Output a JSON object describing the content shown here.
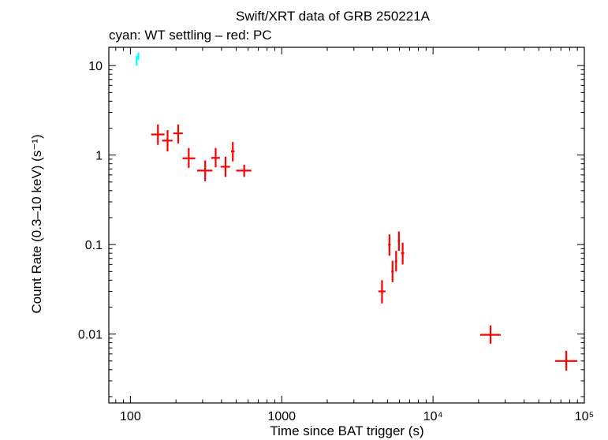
{
  "chart_data": {
    "type": "scatter",
    "title": "Swift/XRT data of GRB 250221A",
    "subtitle": "cyan: WT settling – red: PC",
    "xlabel": "Time since BAT trigger (s)",
    "ylabel": "Count Rate (0.3–10 keV) (s⁻¹)",
    "x_scale": "log",
    "y_scale": "log",
    "xlim": [
      72,
      100000
    ],
    "ylim": [
      0.0017,
      16
    ],
    "x_ticks": [
      {
        "value": 100,
        "label": "100"
      },
      {
        "value": 1000,
        "label": "1000"
      },
      {
        "value": 10000,
        "label": "10⁴"
      },
      {
        "value": 100000,
        "label": "10⁵"
      }
    ],
    "y_ticks": [
      {
        "value": 10,
        "label": "10"
      },
      {
        "value": 1,
        "label": "1"
      },
      {
        "value": 0.1,
        "label": "0.1"
      },
      {
        "value": 0.01,
        "label": "0.01"
      }
    ],
    "grid": false,
    "series": [
      {
        "color": "#00ffff",
        "points": [
          {
            "x": 110,
            "y": 11.5,
            "xlo": 109,
            "xhi": 111,
            "ylo": 10.0,
            "yhi": 12.8
          },
          {
            "x": 113,
            "y": 12.8,
            "xlo": 112,
            "xhi": 114,
            "ylo": 11.6,
            "yhi": 14.0
          }
        ]
      },
      {
        "color": "#ff0000",
        "points": [
          {
            "x": 152,
            "y": 1.7,
            "xlo": 137,
            "xhi": 168,
            "ylo": 1.3,
            "yhi": 2.2
          },
          {
            "x": 176,
            "y": 1.45,
            "xlo": 162,
            "xhi": 190,
            "ylo": 1.1,
            "yhi": 1.9
          },
          {
            "x": 207,
            "y": 1.75,
            "xlo": 192,
            "xhi": 222,
            "ylo": 1.35,
            "yhi": 2.2
          },
          {
            "x": 243,
            "y": 0.92,
            "xlo": 221,
            "xhi": 268,
            "ylo": 0.72,
            "yhi": 1.2
          },
          {
            "x": 312,
            "y": 0.67,
            "xlo": 276,
            "xhi": 348,
            "ylo": 0.51,
            "yhi": 0.87
          },
          {
            "x": 366,
            "y": 0.93,
            "xlo": 342,
            "xhi": 390,
            "ylo": 0.73,
            "yhi": 1.2
          },
          {
            "x": 425,
            "y": 0.74,
            "xlo": 394,
            "xhi": 455,
            "ylo": 0.57,
            "yhi": 0.96
          },
          {
            "x": 475,
            "y": 1.1,
            "xlo": 462,
            "xhi": 488,
            "ylo": 0.85,
            "yhi": 1.4
          },
          {
            "x": 565,
            "y": 0.67,
            "xlo": 500,
            "xhi": 630,
            "ylo": 0.57,
            "yhi": 0.78
          },
          {
            "x": 4600,
            "y": 0.03,
            "xlo": 4350,
            "xhi": 4850,
            "ylo": 0.022,
            "yhi": 0.04
          },
          {
            "x": 5150,
            "y": 0.1,
            "xlo": 5050,
            "xhi": 5250,
            "ylo": 0.075,
            "yhi": 0.13
          },
          {
            "x": 5400,
            "y": 0.05,
            "xlo": 5300,
            "xhi": 5500,
            "ylo": 0.038,
            "yhi": 0.066
          },
          {
            "x": 5700,
            "y": 0.065,
            "xlo": 5600,
            "xhi": 5800,
            "ylo": 0.05,
            "yhi": 0.085
          },
          {
            "x": 5950,
            "y": 0.11,
            "xlo": 5850,
            "xhi": 6050,
            "ylo": 0.085,
            "yhi": 0.14
          },
          {
            "x": 6300,
            "y": 0.08,
            "xlo": 6150,
            "xhi": 6450,
            "ylo": 0.06,
            "yhi": 0.105
          },
          {
            "x": 24000,
            "y": 0.0098,
            "xlo": 20500,
            "xhi": 28000,
            "ylo": 0.0078,
            "yhi": 0.0125
          },
          {
            "x": 76000,
            "y": 0.005,
            "xlo": 64000,
            "xhi": 90000,
            "ylo": 0.0039,
            "yhi": 0.0065
          }
        ]
      }
    ]
  }
}
